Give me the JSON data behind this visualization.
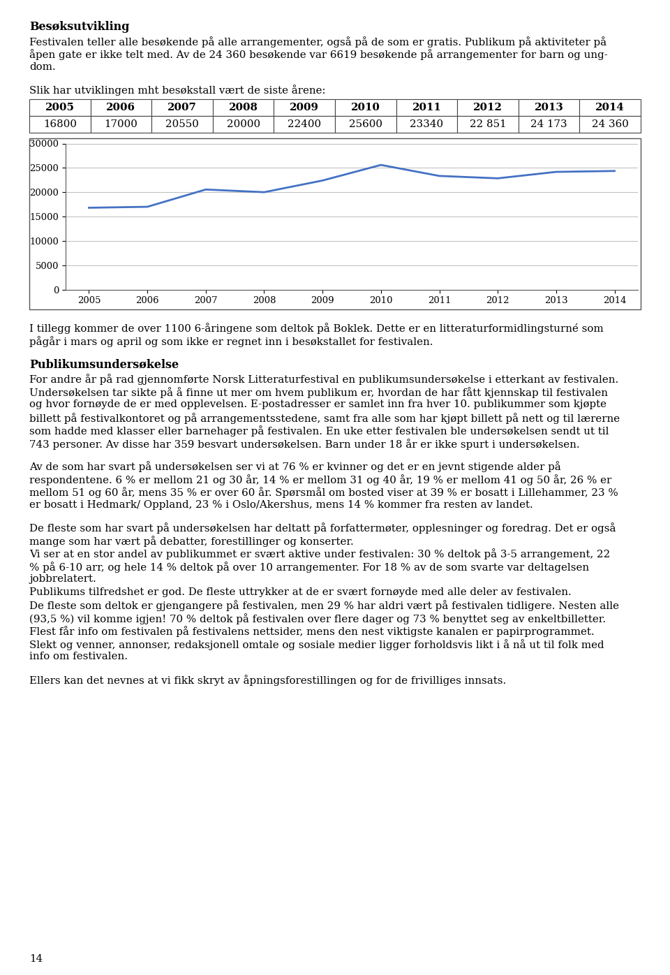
{
  "title_bold": "Besøksutvikling",
  "para1_lines": [
    "Festivalen teller alle besøkende på alle arrangementer, også på de som er gratis. Publikum på aktiviteter på",
    "åpen gate er ikke telt med. Av de 24 360 besøkende var 6619 besøkende på arrangementer for barn og ung-",
    "dom."
  ],
  "table_intro": "Slik har utviklingen mht besøkstall vært de siste årene:",
  "years": [
    2005,
    2006,
    2007,
    2008,
    2009,
    2010,
    2011,
    2012,
    2013,
    2014
  ],
  "values": [
    16800,
    17000,
    20550,
    20000,
    22400,
    25600,
    23340,
    22851,
    24173,
    24360
  ],
  "year_labels": [
    "2005",
    "2006",
    "2007",
    "2008",
    "2009",
    "2010",
    "2011",
    "2012",
    "2013",
    "2014"
  ],
  "value_labels": [
    "16800",
    "17000",
    "20550",
    "20000",
    "22400",
    "25600",
    "23340",
    "22 851",
    "24 173",
    "24 360"
  ],
  "ylim": [
    0,
    30000
  ],
  "yticks": [
    0,
    5000,
    10000,
    15000,
    20000,
    25000,
    30000
  ],
  "line_color": "#4472C4",
  "line_width": 2.0,
  "grid_color": "#bbbbbb",
  "para2_lines": [
    "I tillegg kommer de over 1100 6-åringene som deltok på Boklek. Dette er en litteraturformidlingsturné som",
    "pågår i mars og april og som ikke er regnet inn i besøkstallet for festivalen."
  ],
  "section2_bold": "Publikumsundersøkelse",
  "section2_lines": [
    "For andre år på rad gjennomførte Norsk Litteraturfestival en publikumsundersøkelse i etterkant av festivalen.",
    "Undersøkelsen tar sikte på å finne ut mer om hvem publikum er, hvordan de har fått kjennskap til festivalen",
    "og hvor fornøyde de er med opplevelsen. E-postadresser er samlet inn fra hver 10. publikummer som kjøpte",
    "billett på festivalkontoret og på arrangementsstedene, samt fra alle som har kjøpt billett på nett og til lærerne",
    "som hadde med klasser eller barnehager på festivalen. En uke etter festivalen ble undersøkelsen sendt ut til",
    "743 personer. Av disse har 359 besvart undersøkelsen. Barn under 18 år er ikke spurt i undersøkelsen."
  ],
  "para3_lines": [
    "Av de som har svart på undersøkelsen ser vi at 76 % er kvinner og det er en jevnt stigende alder på",
    "respondentene. 6 % er mellom 21 og 30 år, 14 % er mellom 31 og 40 år, 19 % er mellom 41 og 50 år, 26 % er",
    "mellom 51 og 60 år, mens 35 % er over 60 år. Spørsmål om bosted viser at 39 % er bosatt i Lillehammer, 23 %",
    "er bosatt i Hedmark/ Oppland, 23 % i Oslo/Akershus, mens 14 % kommer fra resten av landet."
  ],
  "para4_lines": [
    "De fleste som har svart på undersøkelsen har deltatt på forfattermøter, opplesninger og foredrag. Det er også",
    "mange som har vært på debatter, forestillinger og konserter.",
    "Vi ser at en stor andel av publikummet er svært aktive under festivalen: 30 % deltok på 3-5 arrangement, 22",
    "% på 6-10 arr, og hele 14 % deltok på over 10 arrangementer. For 18 % av de som svarte var deltagelsen",
    "jobbrelatert.",
    "Publikums tilfredshet er god. De fleste uttrykker at de er svært fornøyde med alle deler av festivalen.",
    "De fleste som deltok er gjengangere på festivalen, men 29 % har aldri vært på festivalen tidligere. Nesten alle",
    "(93,5 %) vil komme igjen! 70 % deltok på festivalen over flere dager og 73 % benyttet seg av enkeltbilletter.",
    "Flest får info om festivalen på festivalens nettsider, mens den nest viktigste kanalen er papirprogrammet.",
    "Slekt og venner, annonser, redaksjonell omtale og sosiale medier ligger forholdsvis likt i å nå ut til folk med",
    "info om festivalen."
  ],
  "para5": "Ellers kan det nevnes at vi fikk skryt av åpningsforestillingen og for de frivilliges innsats.",
  "footer": "14",
  "bg_color": "#ffffff",
  "text_color": "#000000"
}
